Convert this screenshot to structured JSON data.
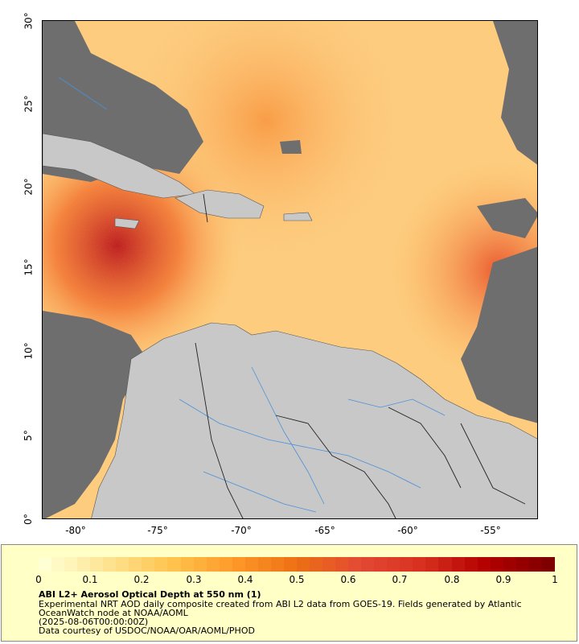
{
  "map": {
    "lat_labels": [
      "30°",
      "25°",
      "20°",
      "15°",
      "10°",
      "5°",
      "0°"
    ],
    "lon_labels": [
      "-80°",
      "-75°",
      "-70°",
      "-65°",
      "-60°",
      "-55°"
    ],
    "lon_range": [
      -82,
      -52
    ],
    "lat_range": [
      0,
      30
    ]
  },
  "colorbar": {
    "ticks": [
      "0",
      "0.1",
      "0.2",
      "0.3",
      "0.4",
      "0.5",
      "0.6",
      "0.7",
      "0.8",
      "0.9",
      "1"
    ],
    "range": [
      0,
      1
    ],
    "colors_low_to_high": [
      "#ffffd4",
      "#fee391",
      "#fec44f",
      "#fe9929",
      "#ec7014",
      "#e34a33",
      "#d7301f",
      "#b30000",
      "#7f0000"
    ]
  },
  "caption": {
    "title": "ABI L2+ Aerosol Optical Depth at 550 nm (1)",
    "line1": "Experimental NRT AOD daily composite created from ABI L2 data from GOES-19. Fields generated by Atlantic",
    "line2": "OceanWatch node at NOAA/AOML",
    "line3": "(2025-08-06T00:00:00Z)",
    "line4": "Data courtesy of USDOC/NOAA/OAR/AOML/PHOD"
  },
  "colors": {
    "land": "#c8c8c8",
    "no_data": "#6e6e6e",
    "rivers": "#4a90d9",
    "legend_bg": "#ffffc6"
  }
}
